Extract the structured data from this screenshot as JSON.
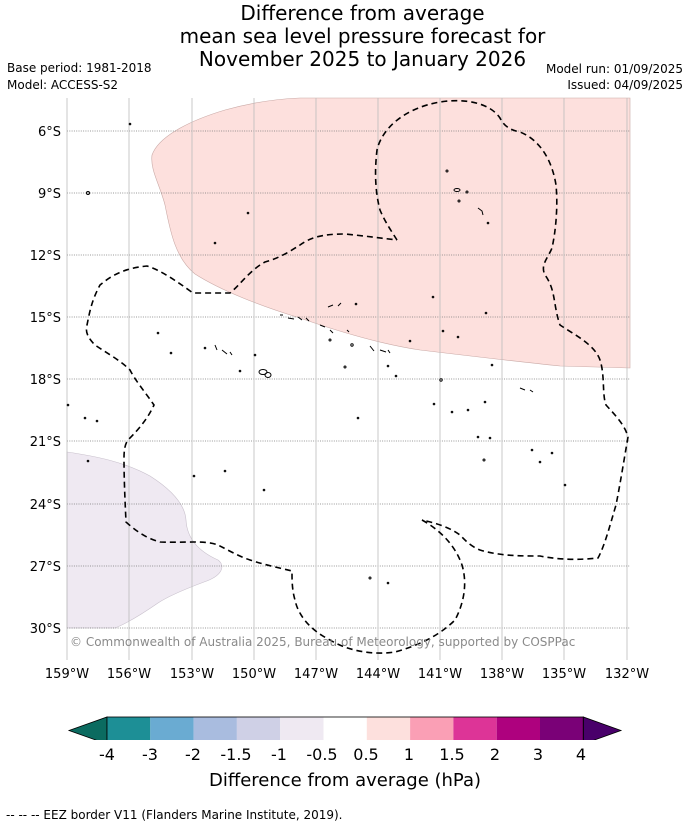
{
  "title_lines": [
    "Difference from average",
    "mean sea level pressure forecast for",
    "November 2025 to January 2026"
  ],
  "meta_left": [
    "Base period: 1981-2018",
    "Model: ACCESS-S2"
  ],
  "meta_right": [
    "Model run: 01/09/2025",
    "Issued: 04/09/2025"
  ],
  "copyright": "© Commonwealth of Australia 2025, Bureau of Meteorology, supported by COSPPac",
  "lat_ticks": [
    "6°S",
    "9°S",
    "12°S",
    "15°S",
    "18°S",
    "21°S",
    "24°S",
    "27°S",
    "30°S"
  ],
  "lon_ticks": [
    "159°W",
    "156°W",
    "153°W",
    "150°W",
    "147°W",
    "144°W",
    "141°W",
    "138°W",
    "135°W",
    "132°W"
  ],
  "colorbar": {
    "ticks": [
      "-4",
      "-3",
      "-2",
      "-1.5",
      "-1",
      "-0.5",
      "0.5",
      "1",
      "1.5",
      "2",
      "3",
      "4"
    ],
    "colors": [
      "#1d8f96",
      "#6aabd2",
      "#a9bcdf",
      "#cfd0e6",
      "#efe9f2",
      "#ffffff",
      "#fde0dd",
      "#fa9fb5",
      "#dd3497",
      "#ae017e",
      "#7a0177"
    ],
    "under_color": "#0b6b60",
    "over_color": "#49006a",
    "label": "Difference from average (hPa)"
  },
  "colors": {
    "positive_region": "#fde0dd",
    "negative_region": "#efe9f2",
    "grid": "#777777"
  },
  "footnote": "--  --  -- EEZ border V11 (Flanders Marine Institute, 2019)."
}
